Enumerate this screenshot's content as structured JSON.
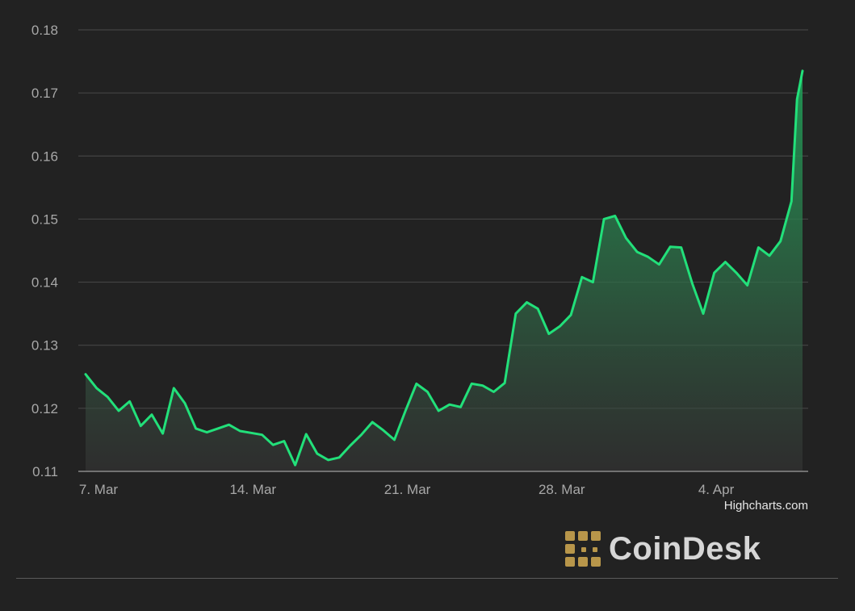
{
  "chart_data": {
    "type": "area",
    "title": "",
    "xlabel": "",
    "ylabel": "",
    "ylim": [
      0.11,
      0.18
    ],
    "yticks": [
      "0.18",
      "0.17",
      "0.16",
      "0.15",
      "0.14",
      "0.13",
      "0.12",
      "0.11"
    ],
    "ytick_values": [
      0.18,
      0.17,
      0.16,
      0.15,
      0.14,
      0.13,
      0.12,
      0.11
    ],
    "xlim": [
      "2022-03-07",
      "2022-04-08"
    ],
    "xtick_labels": [
      "7. Mar",
      "14. Mar",
      "21. Mar",
      "28. Mar",
      "4. Apr"
    ],
    "xtick_dates": [
      "2022-03-07",
      "2022-03-14",
      "2022-03-21",
      "2022-03-28",
      "2022-04-04"
    ],
    "grid": true,
    "line_color": "#22e07a",
    "fill_color_top": "#1f9a55",
    "series": [
      {
        "x": [
          "2022-03-07 00:00",
          "2022-03-07 12:00",
          "2022-03-08 00:00",
          "2022-03-08 12:00",
          "2022-03-09 00:00",
          "2022-03-09 12:00",
          "2022-03-10 00:00",
          "2022-03-10 12:00",
          "2022-03-11 00:00",
          "2022-03-11 12:00",
          "2022-03-12 00:00",
          "2022-03-12 12:00",
          "2022-03-13 00:00",
          "2022-03-13 12:00",
          "2022-03-14 00:00",
          "2022-03-14 12:00",
          "2022-03-15 00:00",
          "2022-03-15 12:00",
          "2022-03-16 00:00",
          "2022-03-16 12:00",
          "2022-03-17 00:00",
          "2022-03-17 12:00",
          "2022-03-18 00:00",
          "2022-03-18 12:00",
          "2022-03-19 00:00",
          "2022-03-19 12:00",
          "2022-03-20 00:00",
          "2022-03-20 12:00",
          "2022-03-21 00:00",
          "2022-03-21 12:00",
          "2022-03-22 00:00",
          "2022-03-22 12:00",
          "2022-03-23 00:00",
          "2022-03-23 12:00",
          "2022-03-24 00:00",
          "2022-03-24 12:00",
          "2022-03-25 00:00",
          "2022-03-25 12:00",
          "2022-03-26 00:00",
          "2022-03-26 12:00",
          "2022-03-27 00:00",
          "2022-03-27 12:00",
          "2022-03-28 00:00",
          "2022-03-28 12:00",
          "2022-03-29 00:00",
          "2022-03-29 12:00",
          "2022-03-30 00:00",
          "2022-03-30 12:00",
          "2022-03-31 00:00",
          "2022-03-31 12:00",
          "2022-04-01 00:00",
          "2022-04-01 12:00",
          "2022-04-02 00:00",
          "2022-04-02 12:00",
          "2022-04-03 00:00",
          "2022-04-03 12:00",
          "2022-04-04 00:00",
          "2022-04-04 12:00",
          "2022-04-05 00:00",
          "2022-04-05 12:00",
          "2022-04-06 00:00",
          "2022-04-06 12:00",
          "2022-04-07 00:00",
          "2022-04-07 12:00",
          "2022-04-08 00:00",
          "2022-04-08 06:00",
          "2022-04-08 12:00"
        ],
        "values": [
          0.1254,
          0.1232,
          0.1218,
          0.1196,
          0.1211,
          0.1172,
          0.119,
          0.116,
          0.1232,
          0.1208,
          0.1168,
          0.1162,
          0.1168,
          0.1174,
          0.1164,
          0.1161,
          0.1158,
          0.1142,
          0.1148,
          0.111,
          0.1159,
          0.1128,
          0.1118,
          0.1122,
          0.1141,
          0.1158,
          0.1178,
          0.1165,
          0.115,
          0.1196,
          0.1239,
          0.1226,
          0.1196,
          0.1206,
          0.1202,
          0.1239,
          0.1236,
          0.1226,
          0.124,
          0.135,
          0.1368,
          0.1358,
          0.1318,
          0.133,
          0.1348,
          0.1408,
          0.14,
          0.15,
          0.1505,
          0.147,
          0.1448,
          0.144,
          0.1428,
          0.1456,
          0.1455,
          0.1398,
          0.135,
          0.1415,
          0.1432,
          0.1415,
          0.1395,
          0.1455,
          0.1442,
          0.1465,
          0.1528,
          0.169,
          0.1735
        ]
      }
    ]
  },
  "credit": "Highcharts.com",
  "brand": {
    "name": "CoinDesk",
    "icon": "coindesk-logo-icon",
    "accent": "#b8964a"
  }
}
